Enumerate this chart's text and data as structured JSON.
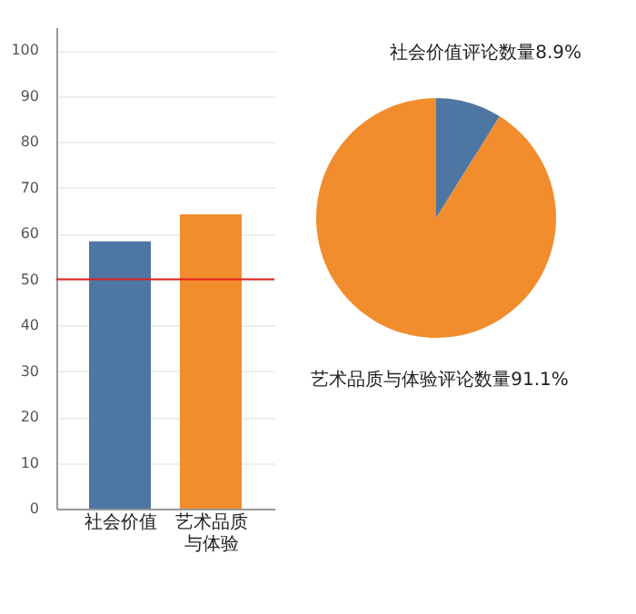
{
  "chart_data": [
    {
      "type": "bar",
      "categories": [
        "社会价值",
        "艺术品质与体验"
      ],
      "colors": [
        "#4e76a2",
        "#f18d2d"
      ],
      "values": [
        58.3,
        64.2
      ],
      "ylim": [
        0,
        105
      ],
      "yticks": [
        0,
        10,
        20,
        30,
        40,
        50,
        60,
        70,
        80,
        90,
        100
      ],
      "grid": "y",
      "ref_lines": [
        {
          "axis": "y",
          "value": 50,
          "color": "#e0201b"
        }
      ]
    },
    {
      "type": "pie",
      "categories": [
        "社会价值评论数量",
        "艺术品质与体验评论数量"
      ],
      "values": [
        8.9,
        91.1
      ],
      "colors": [
        "#4e76a2",
        "#f18d2d"
      ],
      "value_labels": [
        "8.9%",
        "91.1%"
      ]
    }
  ]
}
